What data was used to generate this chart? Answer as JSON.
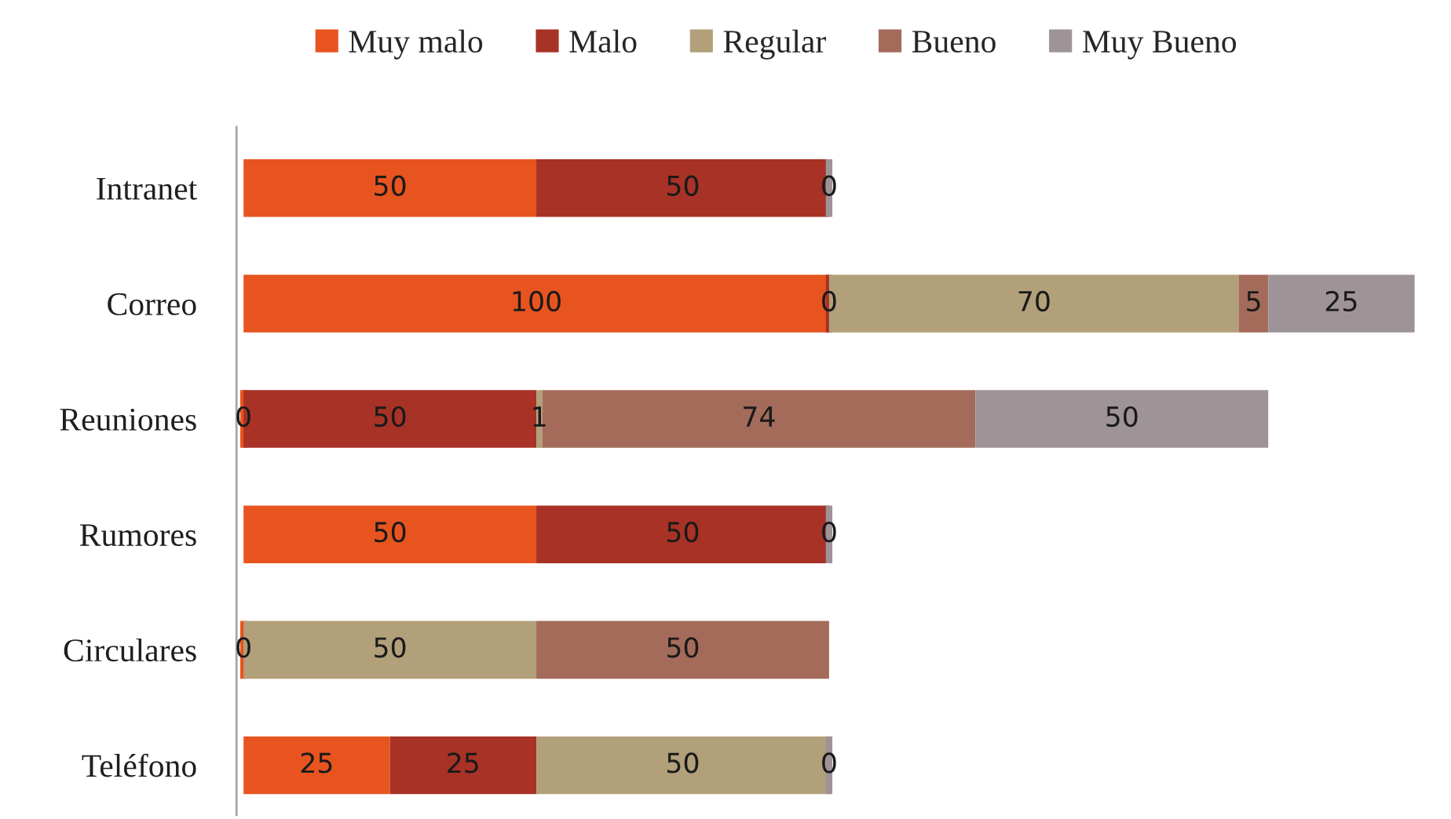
{
  "chart_data": {
    "type": "bar",
    "orientation": "horizontal",
    "stacked": true,
    "categories": [
      "Intranet",
      "Correo",
      "Reuniones",
      "Rumores",
      "Circulares",
      "Teléfono"
    ],
    "series": [
      {
        "name": "Muy malo",
        "color": "#e8541f",
        "values": [
          50,
          100,
          0,
          50,
          0,
          25
        ]
      },
      {
        "name": "Malo",
        "color": "#a83226",
        "values": [
          50,
          0,
          50,
          50,
          null,
          25
        ]
      },
      {
        "name": "Regular",
        "color": "#b2a07a",
        "values": [
          null,
          70,
          1,
          null,
          50,
          50
        ]
      },
      {
        "name": "Bueno",
        "color": "#a46b5b",
        "values": [
          null,
          5,
          74,
          null,
          50,
          null
        ]
      },
      {
        "name": "Muy Bueno",
        "color": "#9e9397",
        "values": [
          0,
          25,
          50,
          0,
          null,
          0
        ]
      }
    ],
    "data_labels": true,
    "legend": "top",
    "tick_labels": "y"
  }
}
